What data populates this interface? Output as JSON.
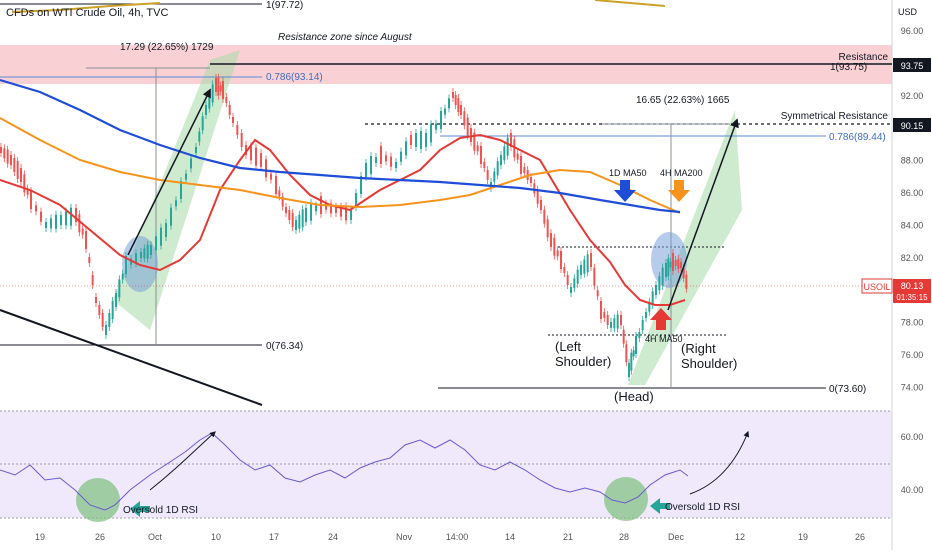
{
  "header": {
    "title": "CFDs on WTI Crude Oil, 4h, TVC",
    "currency": "USD"
  },
  "chart_data": {
    "type": "line",
    "title": "CFDs on WTI Crude Oil, 4h, TVC",
    "yunit": "USD",
    "ylim": [
      72.5,
      97.5
    ],
    "y_ticks": [
      "96.00",
      "94.00",
      "92.00",
      "90.00",
      "88.00",
      "86.00",
      "84.00",
      "82.00",
      "80.00",
      "78.00",
      "76.00",
      "74.00"
    ],
    "x_ticks": [
      "19",
      "26",
      "Oct",
      "10",
      "17",
      "24",
      "Nov",
      "14:00",
      "14",
      "21",
      "28",
      "Dec",
      "12",
      "19",
      "26"
    ],
    "price_badges": [
      {
        "label": "93.75",
        "color": "#131722"
      },
      {
        "label": "90.15",
        "color": "#131722"
      },
      {
        "label": "USOIL",
        "color": "#e53935"
      },
      {
        "label": "80.13",
        "color": "#e53935"
      },
      {
        "label": "01:35:15",
        "color": "#e53935"
      }
    ],
    "series": [
      {
        "name": "1D MA50",
        "color": "#1e4dd8"
      },
      {
        "name": "4H MA200",
        "color": "#f7931a"
      },
      {
        "name": "4H MA50",
        "color": "#e53935"
      }
    ],
    "annotations": {
      "fib_top": "1(97.72)",
      "zone_label": "Resistance zone since August",
      "resistance": "Resistance",
      "res_level": "1(93.75)",
      "fib_786_left": "0.786(93.14)",
      "measure_left": "17.29 (22.65%) 1729",
      "measure_right": "16.65 (22.63%) 1665",
      "symmetrical": "Symmetrical Resistance",
      "fib_786_right": "0.786(89.44)",
      "ma50_1d": "1D MA50",
      "ma200_4h": "4H MA200",
      "ma50_4h": "4H MA50",
      "fib_zero_left": "0(76.34)",
      "fib_zero_right": "0(73.60)",
      "left_shoulder_1": "(Left",
      "left_shoulder_2": "Shoulder)",
      "right_shoulder_1": "(Right",
      "right_shoulder_2": "Shoulder)",
      "head": "(Head)",
      "oversold_1": "Oversold 1D RSI",
      "oversold_2": "Oversold 1D RSI"
    },
    "rsi": {
      "ylim": [
        30,
        70
      ],
      "ticks": [
        "60.00",
        "40.00"
      ]
    }
  }
}
